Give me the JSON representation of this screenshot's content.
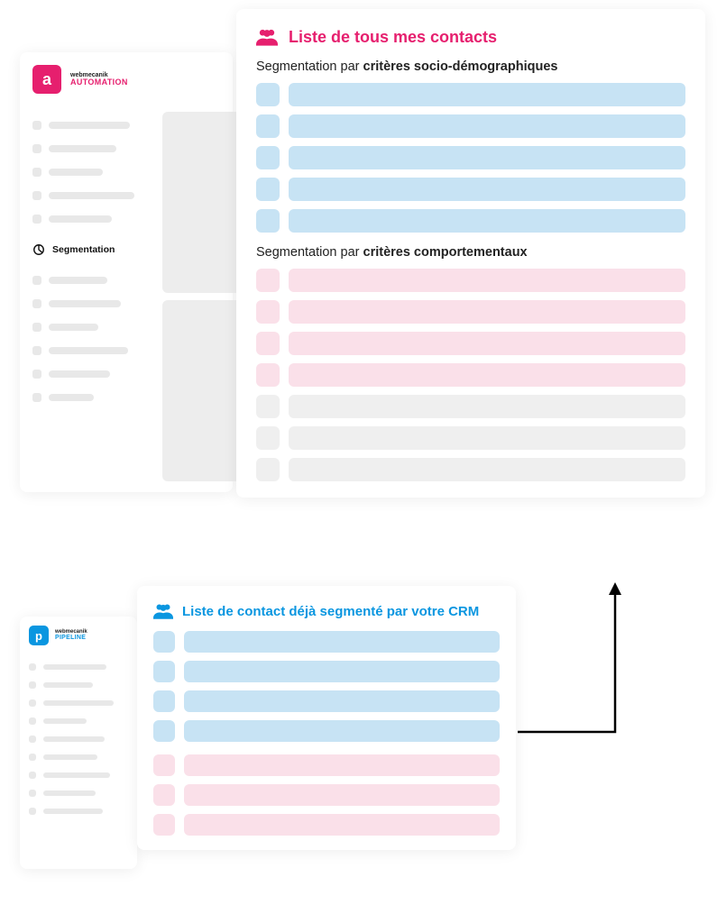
{
  "colors": {
    "pink": "#e61f6e",
    "blue": "#0a96e0",
    "blue_light": "#c7e3f4",
    "pink_light": "#fae0e9",
    "grey_light": "#efefef",
    "grey_bar": "#e8e8e8",
    "text": "#222222"
  },
  "automation": {
    "logo_letter": "a",
    "logo_small": "webmecanik",
    "logo_sub": "AUTOMATION",
    "segmentation_label": "Segmentation",
    "placeholder_top_widths": [
      90,
      75,
      60,
      95,
      70
    ],
    "placeholder_bottom_widths": [
      65,
      80,
      55,
      88,
      68,
      50
    ]
  },
  "main_panel": {
    "title": "Liste de tous mes contacts",
    "section1_label_prefix": "Segmentation par ",
    "section1_label_bold": "critères socio-démographiques",
    "section1_rows": 5,
    "section2_label_prefix": "Segmentation par ",
    "section2_label_bold": "critères comportementaux",
    "section2_rows": 4,
    "section2_grey_rows": 3
  },
  "pipeline": {
    "logo_letter": "p",
    "logo_small": "webmecanik",
    "logo_sub": "PIPELINE",
    "placeholder_widths": [
      70,
      55,
      78,
      48,
      68,
      60,
      74,
      58,
      66
    ]
  },
  "crm_panel": {
    "title": "Liste de contact déjà segmenté par votre CRM",
    "blue_rows": 4,
    "pink_rows": 3
  }
}
